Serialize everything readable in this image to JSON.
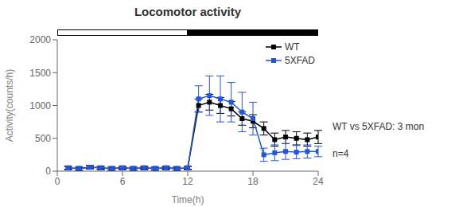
{
  "chart_data": {
    "type": "line",
    "title": "Locomotor activity",
    "x_label": "Time(h)",
    "y_label": "Activity(counts/h)",
    "annotations": [
      "WT vs 5XFAD: 3 mon",
      "n=4"
    ],
    "x": [
      1,
      2,
      3,
      4,
      5,
      6,
      7,
      8,
      9,
      10,
      11,
      12,
      13,
      14,
      15,
      16,
      17,
      18,
      19,
      20,
      21,
      22,
      23,
      24
    ],
    "series": [
      {
        "name": "WT",
        "color": "#000000",
        "marker": "square",
        "values": [
          50,
          40,
          60,
          50,
          40,
          50,
          40,
          50,
          40,
          50,
          40,
          50,
          1000,
          1050,
          1000,
          950,
          800,
          760,
          650,
          480,
          520,
          500,
          480,
          520
        ],
        "error": [
          20,
          20,
          20,
          20,
          20,
          20,
          20,
          20,
          20,
          20,
          20,
          20,
          100,
          120,
          120,
          110,
          100,
          100,
          100,
          100,
          100,
          100,
          100,
          100
        ]
      },
      {
        "name": "5XFAD",
        "color": "#2255dd",
        "marker": "square",
        "values": [
          50,
          40,
          60,
          50,
          40,
          50,
          40,
          50,
          40,
          50,
          40,
          50,
          1100,
          1150,
          1100,
          1050,
          900,
          800,
          250,
          280,
          300,
          290,
          300,
          300
        ],
        "error": [
          30,
          30,
          30,
          30,
          30,
          30,
          30,
          30,
          30,
          30,
          30,
          30,
          200,
          300,
          350,
          300,
          300,
          250,
          100,
          120,
          120,
          100,
          100,
          80
        ]
      }
    ],
    "xlim": [
      0,
      24
    ],
    "ylim": [
      0,
      2000
    ],
    "xticks": [
      0,
      6,
      12,
      18,
      24
    ],
    "yticks": [
      0,
      500,
      1000,
      1500,
      2000
    ],
    "day": [
      0,
      12
    ],
    "night": [
      12,
      24
    ],
    "grid": false,
    "legend": "upper right"
  }
}
